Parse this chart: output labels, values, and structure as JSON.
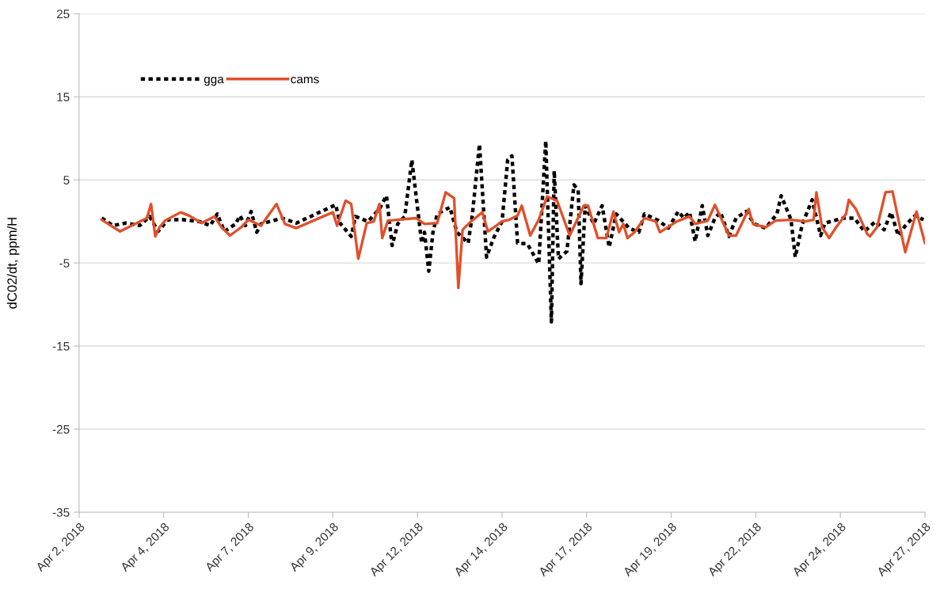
{
  "chart_data": {
    "type": "line",
    "ylabel": "dC02/dt, ppm/H",
    "xlim": [
      "2018-04-02T00:00",
      "2018-04-27T00:00"
    ],
    "xticks": [
      {
        "value": "2018-04-02T00:00",
        "label": "Apr 2, 2018"
      },
      {
        "value": "2018-04-04T12:00",
        "label": "Apr 4, 2018"
      },
      {
        "value": "2018-04-07T00:00",
        "label": "Apr 7, 2018"
      },
      {
        "value": "2018-04-09T12:00",
        "label": "Apr 9, 2018"
      },
      {
        "value": "2018-04-12T00:00",
        "label": "Apr 12, 2018"
      },
      {
        "value": "2018-04-14T12:00",
        "label": "Apr 14, 2018"
      },
      {
        "value": "2018-04-17T00:00",
        "label": "Apr 17, 2018"
      },
      {
        "value": "2018-04-19T12:00",
        "label": "Apr 19, 2018"
      },
      {
        "value": "2018-04-22T00:00",
        "label": "Apr 22, 2018"
      },
      {
        "value": "2018-04-24T12:00",
        "label": "Apr 24, 2018"
      },
      {
        "value": "2018-04-27T00:00",
        "label": "Apr 27, 2018"
      }
    ],
    "ylim": [
      -35,
      25
    ],
    "yticks": [
      -35,
      -25,
      -15,
      -5,
      5,
      15,
      25
    ],
    "grid": "y",
    "legend": "top left",
    "marker": "none",
    "series": [
      {
        "name": "gga",
        "color": "#000000",
        "line_style": "dotted",
        "x": [
          "2018-04-02T16:00",
          "2018-04-03T00:00",
          "2018-04-03T09:00",
          "2018-04-03T19:00",
          "2018-04-04T02:00",
          "2018-04-04T08:00",
          "2018-04-04T15:00",
          "2018-04-05T02:00",
          "2018-04-05T13:00",
          "2018-04-05T21:00",
          "2018-04-06T02:00",
          "2018-04-06T07:00",
          "2018-04-06T15:00",
          "2018-04-06T18:00",
          "2018-04-06T22:00",
          "2018-04-07T02:00",
          "2018-04-07T06:00",
          "2018-04-07T09:00",
          "2018-04-08T00:00",
          "2018-04-08T10:00",
          "2018-04-09T14:00",
          "2018-04-09T17:00",
          "2018-04-10T01:00",
          "2018-04-10T04:00",
          "2018-04-10T13:00",
          "2018-04-10T21:00",
          "2018-04-11T02:00",
          "2018-04-11T06:00",
          "2018-04-11T10:00",
          "2018-04-11T15:00",
          "2018-04-11T20:00",
          "2018-04-12T03:00",
          "2018-04-12T05:00",
          "2018-04-12T08:00",
          "2018-04-12T11:00",
          "2018-04-12T14:00",
          "2018-04-12T23:00",
          "2018-04-13T04:00",
          "2018-04-13T12:00",
          "2018-04-13T15:00",
          "2018-04-13T20:00",
          "2018-04-14T01:00",
          "2018-04-14T06:00",
          "2018-04-14T12:00",
          "2018-04-14T16:00",
          "2018-04-14T19:00",
          "2018-04-14T23:00",
          "2018-04-15T06:00",
          "2018-04-15T14:00",
          "2018-04-15T19:00",
          "2018-04-15T23:00",
          "2018-04-16T01:00",
          "2018-04-16T04:00",
          "2018-04-16T10:00",
          "2018-04-16T15:00",
          "2018-04-16T18:00",
          "2018-04-16T20:00",
          "2018-04-16T23:00",
          "2018-04-17T05:00",
          "2018-04-17T11:00",
          "2018-04-17T16:00",
          "2018-04-17T21:00",
          "2018-04-18T06:00",
          "2018-04-18T13:00",
          "2018-04-18T17:00",
          "2018-04-19T03:00",
          "2018-04-19T10:00",
          "2018-04-19T17:00",
          "2018-04-19T21:00",
          "2018-04-20T01:00",
          "2018-04-20T05:00",
          "2018-04-20T10:00",
          "2018-04-20T14:00",
          "2018-04-20T19:00",
          "2018-04-20T23:00",
          "2018-04-21T05:00",
          "2018-04-21T10:00",
          "2018-04-21T17:00",
          "2018-04-21T23:00",
          "2018-04-22T07:00",
          "2018-04-22T15:00",
          "2018-04-22T18:00",
          "2018-04-23T01:00",
          "2018-04-23T04:00",
          "2018-04-23T09:00",
          "2018-04-23T16:00",
          "2018-04-23T22:00",
          "2018-04-24T01:00",
          "2018-04-24T14:00",
          "2018-04-24T22:00",
          "2018-04-25T05:00",
          "2018-04-25T13:00",
          "2018-04-25T19:00",
          "2018-04-26T00:00",
          "2018-04-26T05:00",
          "2018-04-26T11:00",
          "2018-04-26T17:00",
          "2018-04-26T23:00"
        ],
        "values": [
          0.4,
          -0.5,
          -0.2,
          -0.5,
          0.6,
          -1.2,
          0.2,
          0.2,
          0,
          -0.5,
          0.9,
          -1.2,
          -0.3,
          0.7,
          -0.5,
          1.2,
          -1.3,
          -0.3,
          0.4,
          -0.2,
          2.0,
          -0.2,
          -1.8,
          0.6,
          0,
          1.5,
          3.1,
          -2.9,
          -0.3,
          0.6,
          7.4,
          -2.6,
          -1.3,
          -6.0,
          -1.3,
          0.9,
          1.7,
          -1.3,
          -2.6,
          0.9,
          9.3,
          -4.3,
          -2.0,
          0,
          7.4,
          7.9,
          -2.6,
          -2.7,
          -5.1,
          9.7,
          -12.1,
          6.1,
          -4.5,
          -3.6,
          4.4,
          3.8,
          -7.5,
          1.9,
          -0.3,
          1.9,
          -3.1,
          0.9,
          -0.8,
          -1.3,
          0.9,
          0.1,
          -0.8,
          1.2,
          0.4,
          1.1,
          -2.4,
          1.9,
          -1.7,
          0.4,
          1.1,
          -1.8,
          0.4,
          1.2,
          -0.3,
          -0.8,
          0.9,
          3.1,
          0.2,
          -4.3,
          -0.3,
          2.6,
          -1.7,
          -0.2,
          0.4,
          0.4,
          -1.2,
          0,
          -1.0,
          1.1,
          -1.7,
          -0.3,
          0.7,
          0.2
        ]
      },
      {
        "name": "cams",
        "color": "#e0502a",
        "line_style": "solid",
        "x": [
          "2018-04-02T16:00",
          "2018-04-03T05:00",
          "2018-04-04T00:00",
          "2018-04-04T03:00",
          "2018-04-04T06:00",
          "2018-04-04T09:00",
          "2018-04-04T13:00",
          "2018-04-05T00:00",
          "2018-04-05T06:00",
          "2018-04-05T15:00",
          "2018-04-06T00:00",
          "2018-04-06T05:00",
          "2018-04-06T11:00",
          "2018-04-06T19:00",
          "2018-04-07T00:00",
          "2018-04-07T09:00",
          "2018-04-07T20:00",
          "2018-04-08T02:00",
          "2018-04-08T10:00",
          "2018-04-09T12:00",
          "2018-04-09T15:00",
          "2018-04-09T21:00",
          "2018-04-10T01:00",
          "2018-04-10T06:00",
          "2018-04-10T12:00",
          "2018-04-10T17:00",
          "2018-04-10T21:00",
          "2018-04-10T23:00",
          "2018-04-11T03:00",
          "2018-04-11T23:00",
          "2018-04-12T05:00",
          "2018-04-12T14:00",
          "2018-04-12T20:00",
          "2018-04-13T02:00",
          "2018-04-13T05:00",
          "2018-04-13T08:00",
          "2018-04-13T14:00",
          "2018-04-13T22:00",
          "2018-04-14T02:00",
          "2018-04-14T08:00",
          "2018-04-14T12:00",
          "2018-04-14T17:00",
          "2018-04-14T23:00",
          "2018-04-15T02:00",
          "2018-04-15T08:00",
          "2018-04-15T14:00",
          "2018-04-15T20:00",
          "2018-04-16T03:00",
          "2018-04-16T12:00",
          "2018-04-16T22:00",
          "2018-04-17T01:00",
          "2018-04-17T08:00",
          "2018-04-17T14:00",
          "2018-04-17T19:00",
          "2018-04-17T23:00",
          "2018-04-18T02:00",
          "2018-04-18T05:00",
          "2018-04-18T10:00",
          "2018-04-18T17:00",
          "2018-04-19T01:00",
          "2018-04-19T04:00",
          "2018-04-19T16:00",
          "2018-04-20T01:00",
          "2018-04-20T05:00",
          "2018-04-20T14:00",
          "2018-04-20T19:00",
          "2018-04-21T05:00",
          "2018-04-21T10:00",
          "2018-04-21T19:00",
          "2018-04-21T22:00",
          "2018-04-22T07:00",
          "2018-04-22T14:00",
          "2018-04-23T01:00",
          "2018-04-23T11:00",
          "2018-04-23T17:00",
          "2018-04-23T19:00",
          "2018-04-23T23:00",
          "2018-04-24T04:00",
          "2018-04-24T09:00",
          "2018-04-24T16:00",
          "2018-04-24T18:00",
          "2018-04-24T23:00",
          "2018-04-25T07:00",
          "2018-04-25T09:00",
          "2018-04-25T14:00",
          "2018-04-25T20:00",
          "2018-04-26T01:00",
          "2018-04-26T10:00",
          "2018-04-26T18:00",
          "2018-04-27T00:00"
        ],
        "values": [
          0.2,
          -1.2,
          0.4,
          2.1,
          -1.8,
          -0.7,
          0.1,
          1.1,
          0.7,
          -0.2,
          0.6,
          -0.7,
          -1.7,
          -0.7,
          0.2,
          -0.5,
          2.1,
          -0.3,
          -0.8,
          1.1,
          -0.5,
          2.5,
          2.1,
          -4.5,
          -0.2,
          0,
          2.1,
          -2.0,
          0.1,
          0.4,
          -0.3,
          -0.2,
          3.5,
          2.8,
          -8.0,
          -1.0,
          0,
          1.1,
          -1.2,
          -0.5,
          0,
          0.2,
          0.7,
          1.9,
          -1.7,
          0.2,
          3.0,
          2.5,
          -1.7,
          1.9,
          1.9,
          -2.0,
          -2.0,
          1.2,
          -1.3,
          -0.3,
          -2.0,
          -1.3,
          0.4,
          0,
          -1.3,
          0,
          0.6,
          -0.3,
          0.1,
          2.0,
          -1.7,
          -1.7,
          1.5,
          -0.3,
          -0.7,
          0.1,
          0.2,
          0,
          0.2,
          3.5,
          -0.7,
          -2.0,
          -0.7,
          0.9,
          2.6,
          1.5,
          -1.5,
          -1.8,
          -0.7,
          3.5,
          3.6,
          -3.7,
          1.2,
          -2.6
        ]
      }
    ]
  }
}
